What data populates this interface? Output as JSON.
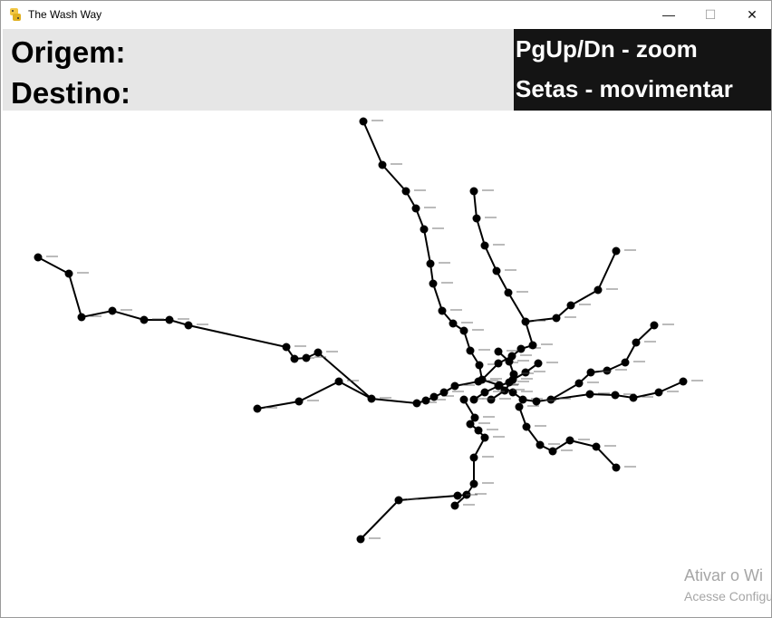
{
  "window": {
    "title": "The Wash Way",
    "icon": "python-icon",
    "controls": {
      "minimize": "—",
      "maximize": "☐",
      "close": "✕"
    }
  },
  "info": {
    "origin_label": "Origem:",
    "destination_label": "Destino:"
  },
  "help": {
    "zoom_hint": "PgUp/Dn - zoom",
    "move_hint": "Setas - movimentar"
  },
  "map": {
    "line_color": "#000000",
    "station_color": "#000000",
    "labels_legible": false
  },
  "watermark": {
    "line1": "Ativar o Wi",
    "line2": "Acesse Configu"
  }
}
